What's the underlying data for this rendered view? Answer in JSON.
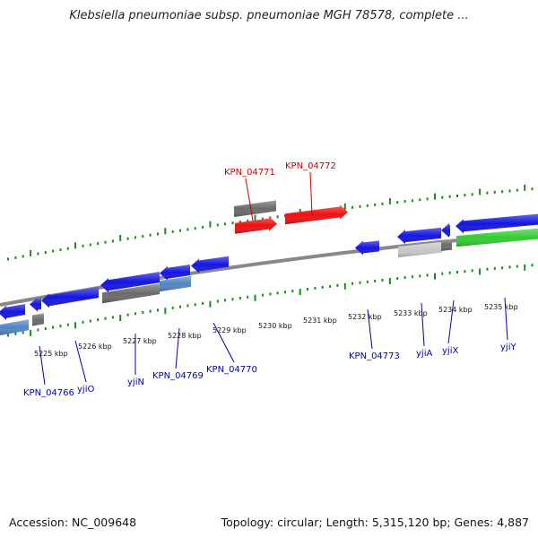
{
  "title": "Klebsiella pneumoniae subsp. pneumoniae MGH 78578, complete ...",
  "footer": {
    "accession": "Accession: NC_009648",
    "summary": "Topology: circular; Length: 5,315,120 bp; Genes: 4,887"
  },
  "colors": {
    "highlight_label": "#cc0000",
    "normal_label": "#0000aa",
    "tick": "#1a8a1a",
    "backbone": "#888888",
    "gene_blue": "#1515e0",
    "gene_red": "#ee1111",
    "gene_gray": "#6b6b6b",
    "gene_lightgray": "#c8c8c8",
    "gene_green": "#33cc33",
    "gene_steelblue": "#4f86c0"
  },
  "scale": {
    "tick_labels": [
      "5225 kbp",
      "5226 kbp",
      "5227 kbp",
      "5228 kbp",
      "5229 kbp",
      "5230 kbp",
      "5231 kbp",
      "5232 kbp",
      "5233 kbp",
      "5234 kbp",
      "5235 kbp"
    ]
  },
  "gene_labels": [
    {
      "text": "KPN_04771",
      "highlight": true
    },
    {
      "text": "KPN_04772",
      "highlight": true
    },
    {
      "text": "KPN_04766",
      "highlight": false
    },
    {
      "text": "yjiO",
      "highlight": false
    },
    {
      "text": "yjiN",
      "highlight": false
    },
    {
      "text": "KPN_04769",
      "highlight": false
    },
    {
      "text": "KPN_04770",
      "highlight": false
    },
    {
      "text": "KPN_04773",
      "highlight": false
    },
    {
      "text": "yjiA",
      "highlight": false
    },
    {
      "text": "yjiX",
      "highlight": false
    },
    {
      "text": "yjiY",
      "highlight": false
    }
  ]
}
